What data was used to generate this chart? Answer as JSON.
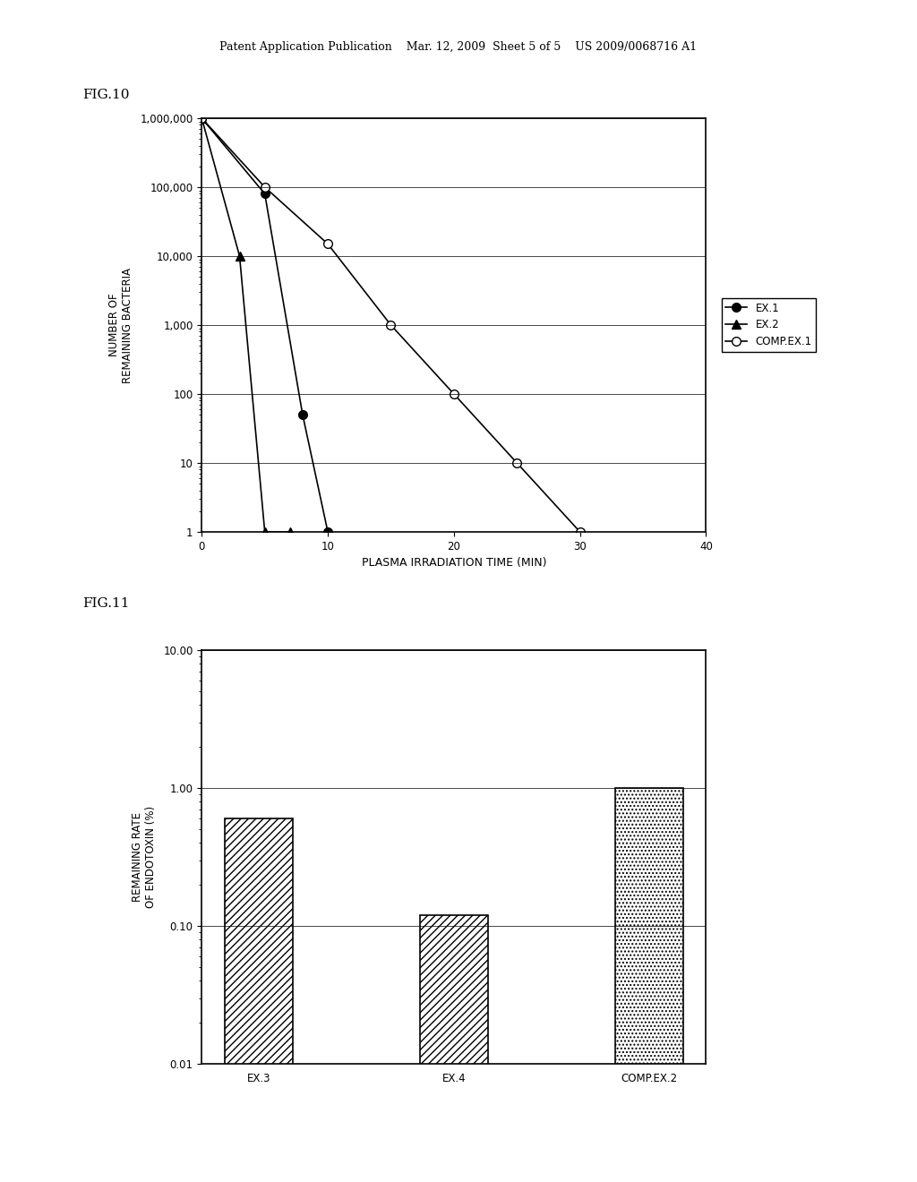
{
  "fig10": {
    "title": "FIG.10",
    "xlabel": "PLASMA IRRADIATION TIME (MIN)",
    "ylabel": "NUMBER OF\nREMAINING BACTERIA",
    "xlim": [
      0,
      40
    ],
    "ylim": [
      1,
      1000000
    ],
    "xticks": [
      0,
      10,
      20,
      30,
      40
    ],
    "yticks": [
      1,
      10,
      100,
      1000,
      10000,
      100000,
      1000000
    ],
    "series": [
      {
        "label": "EX.1",
        "x": [
          0,
          5,
          8,
          10
        ],
        "y": [
          1000000,
          80000,
          50,
          1
        ],
        "marker": "o",
        "markerfacecolor": "black",
        "color": "black",
        "linestyle": "-"
      },
      {
        "label": "EX.2",
        "x": [
          0,
          3,
          5,
          7
        ],
        "y": [
          1000000,
          10000,
          1,
          1
        ],
        "marker": "^",
        "markerfacecolor": "black",
        "color": "black",
        "linestyle": "-"
      },
      {
        "label": "COMP.EX.1",
        "x": [
          0,
          5,
          10,
          15,
          20,
          25,
          30
        ],
        "y": [
          1000000,
          100000,
          15000,
          1000,
          100,
          10,
          1
        ],
        "marker": "o",
        "markerfacecolor": "white",
        "color": "black",
        "linestyle": "-"
      }
    ]
  },
  "fig11": {
    "title": "FIG.11",
    "xlabel": "",
    "ylabel": "REMAINING RATE\nOF ENDOTOXIN (%)",
    "ylim": [
      0.01,
      10.0
    ],
    "yticks": [
      0.01,
      0.1,
      1.0,
      10.0
    ],
    "ytick_labels": [
      "0.01",
      "0.10",
      "1.00",
      "10.00"
    ],
    "categories": [
      "EX.3",
      "EX.4",
      "COMP.EX.2"
    ],
    "values": [
      0.6,
      0.12,
      1.0
    ],
    "bar_colors": [
      "#aaaaaa",
      "#aaaaaa",
      "#aaaaaa"
    ],
    "hatch_patterns": [
      "////",
      "////",
      "...."
    ]
  },
  "page_header": "Patent Application Publication    Mar. 12, 2009  Sheet 5 of 5    US 2009/0068716 A1",
  "background_color": "#ffffff"
}
